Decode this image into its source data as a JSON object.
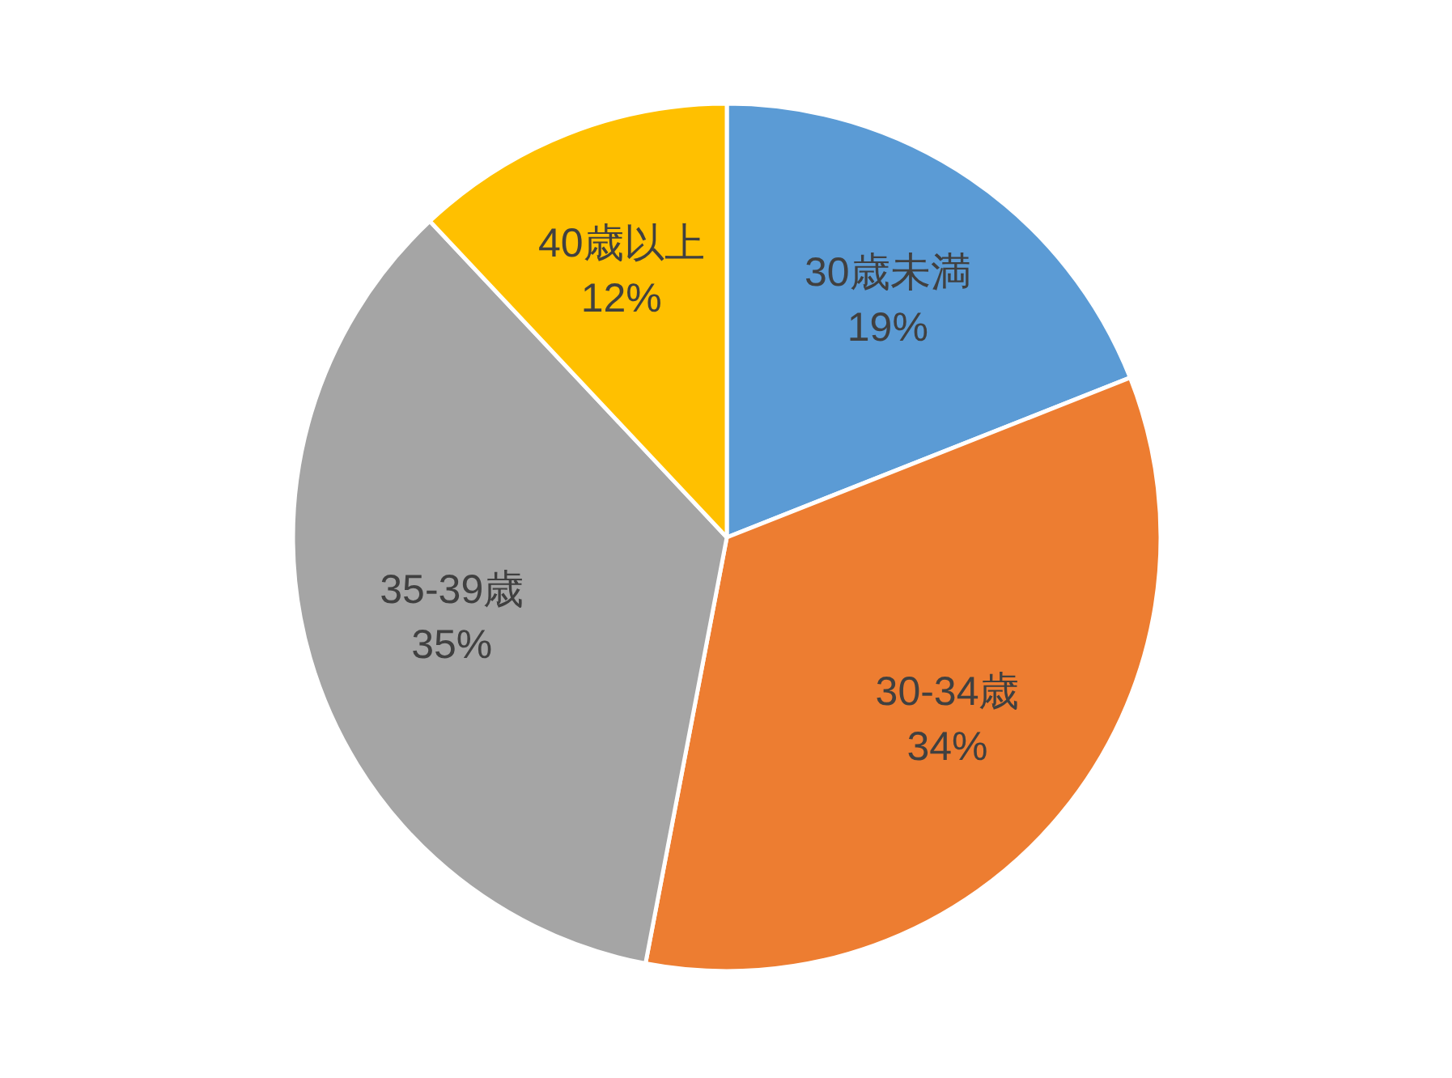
{
  "chart_data": {
    "type": "pie",
    "categories": [
      "30歳未満",
      "30-34歳",
      "35-39歳",
      "40歳以上"
    ],
    "values": [
      19,
      34,
      35,
      12
    ],
    "colors": [
      "#5b9bd5",
      "#ed7d31",
      "#a5a5a5",
      "#ffc000"
    ],
    "value_labels": [
      "19%",
      "34%",
      "35%",
      "12%"
    ]
  }
}
